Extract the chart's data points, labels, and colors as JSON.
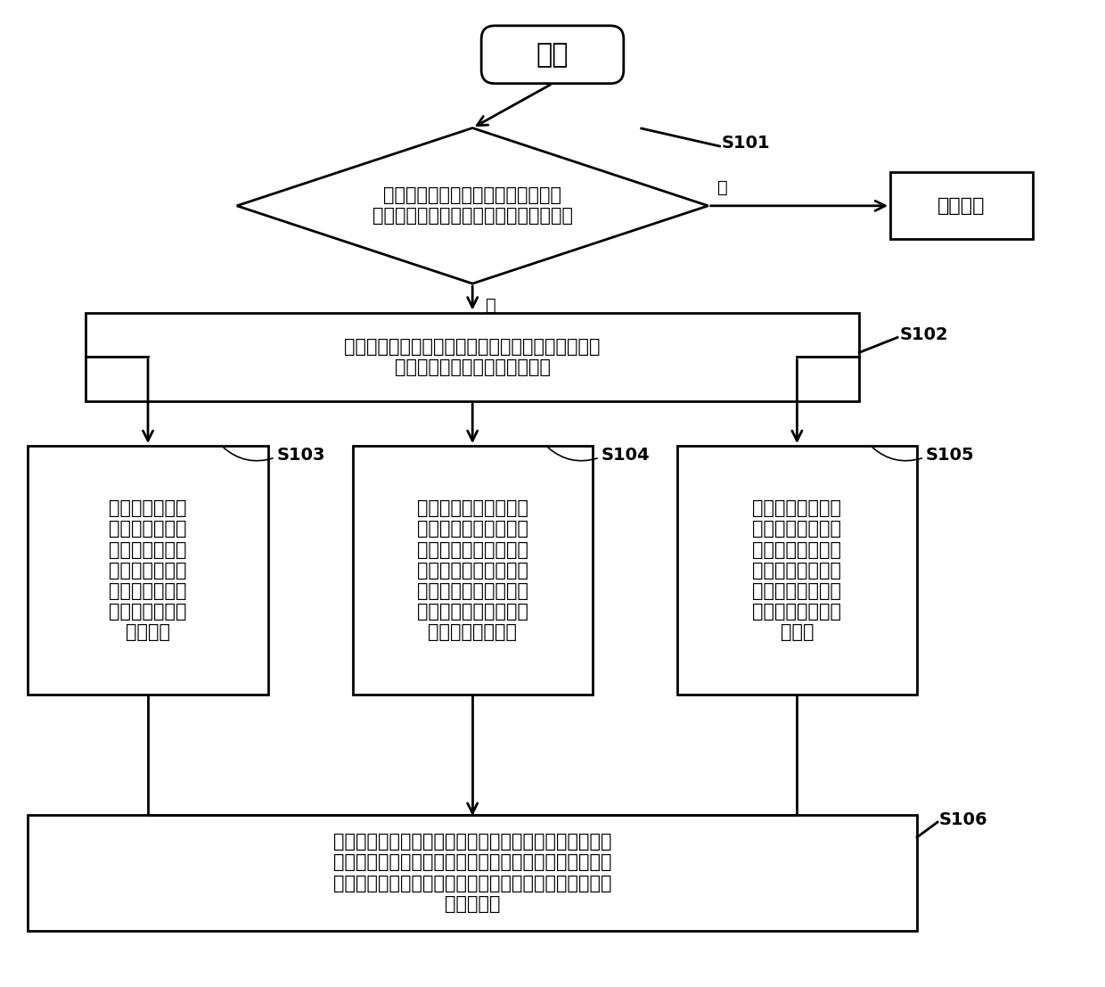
{
  "bg_color": "#ffffff",
  "font_color": "#000000",
  "start_text": "开始",
  "decision_text": "当移动终端的电池的电量低于第一预\n设电量时，检测充电器是否插入移动终端",
  "no_action_text": "不做处理",
  "s102_text": "在对电池充电之前，利用充电器从外部电源获取的输\n出电量对虚拟储电模组进行充电",
  "s103_text": "在电池的充电瞬\n间，利用充电后\n的虚拟储电模组\n中的充电电量对\n移动终端进行供\n电、以及对电池\n进行充电",
  "s104_text": "在电池的充电瞬间，当\n电池的电量低于第一预\n设电量、且高于第二预\n设电量时，利用电池的\n电量对充电器进行供电\n，其中，第二预设电量\n小于第一预设电量",
  "s105_text": "在电池的充电瞬间\n，当电池的电量低\n于第二预设电量时\n，利用充电后的虚\n拟储电模组中的充\n电电量对充电器进\n行供电",
  "s106_text": "当电池的电量高于第三预设电量时，利用充电器从外部电\n源获取的输出电量对电池进行充电，并利用电池的电量对\n移动终端和充电器进行供电，其中，第三预设电量大于第\n一预设电量",
  "yes_text": "是",
  "no_text": "否",
  "label_s101": "S101",
  "label_s102": "S102",
  "label_s103": "S103",
  "label_s104": "S104",
  "label_s105": "S105",
  "label_s106": "S106"
}
